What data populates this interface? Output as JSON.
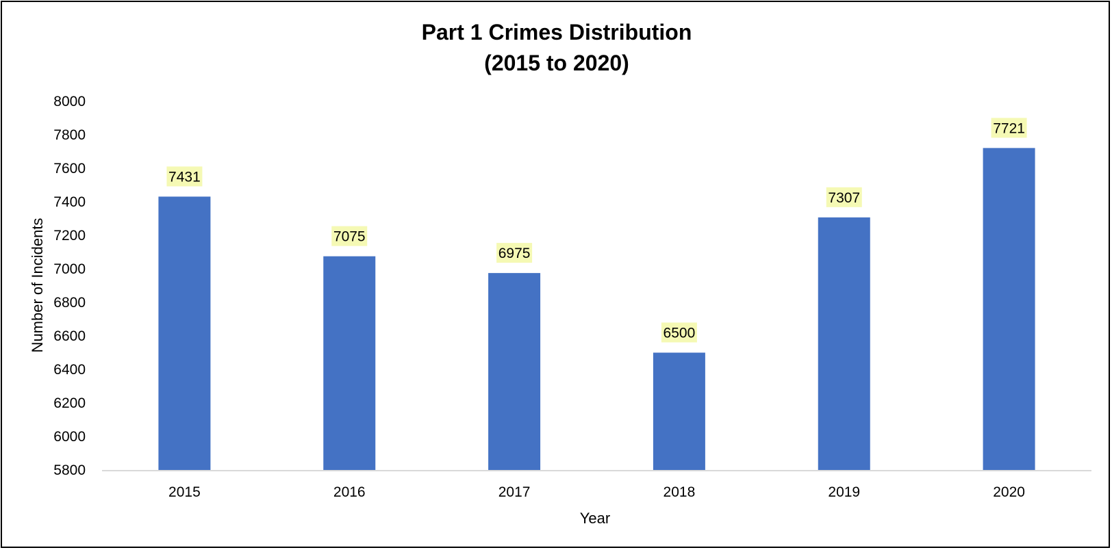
{
  "chart_data": {
    "type": "bar",
    "title": [
      "Part 1 Crimes Distribution",
      "(2015 to 2020)"
    ],
    "xlabel": "Year",
    "ylabel": "Number of Incidents",
    "categories": [
      "2015",
      "2016",
      "2017",
      "2018",
      "2019",
      "2020"
    ],
    "values": [
      7431,
      7075,
      6975,
      6500,
      7307,
      7721
    ],
    "ylim": [
      5800,
      8000
    ],
    "yticks": [
      5800,
      6000,
      6200,
      6400,
      6600,
      6800,
      7000,
      7200,
      7400,
      7600,
      7800,
      8000
    ],
    "grid": false,
    "legend": "none",
    "colors": {
      "bar": "#4472C4",
      "data_label_background": "#F5F9B4",
      "axis_line": "#D9D9D9",
      "border": "#000000"
    }
  }
}
